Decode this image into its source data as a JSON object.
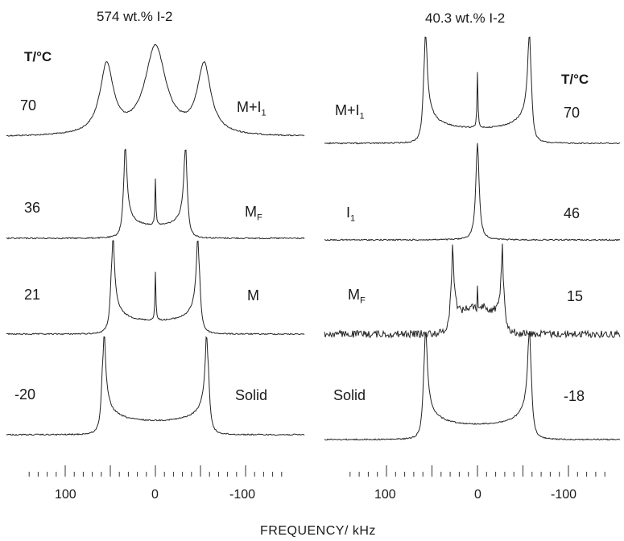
{
  "chart_data": {
    "type": "line",
    "xlabel": "FREQUENCY/ kHz",
    "x_tick_labels": [
      "100",
      "0",
      "-100"
    ],
    "xlim": [
      140,
      -140
    ],
    "panels": [
      {
        "title": "574 wt.% I-2",
        "temp_header": "T/°C",
        "spectra": [
          {
            "temperature": "70",
            "phase": "M+I1",
            "shape": "three_peak",
            "horns_kHz": [
              54,
              -54
            ],
            "center_peak": true
          },
          {
            "temperature": "36",
            "phase": "MF",
            "shape": "powder",
            "horns_kHz": [
              34,
              -34
            ],
            "center_spike": true
          },
          {
            "temperature": "21",
            "phase": "M",
            "shape": "powder",
            "horns_kHz": [
              48,
              -48
            ],
            "center_spike": true
          },
          {
            "temperature": "-20",
            "phase": "Solid",
            "shape": "powder",
            "horns_kHz": [
              58,
              -58
            ],
            "center_spike": false
          }
        ]
      },
      {
        "title": "40.3 wt.% I-2",
        "temp_header": "T/°C",
        "spectra": [
          {
            "temperature": "70",
            "phase": "M+I1",
            "shape": "powder",
            "horns_kHz": [
              58,
              -58
            ],
            "center_spike": true
          },
          {
            "temperature": "46",
            "phase": "I1",
            "shape": "single",
            "horns_kHz": [
              0
            ],
            "center_spike": false
          },
          {
            "temperature": "15",
            "phase": "MF",
            "shape": "noisy_powder",
            "horns_kHz": [
              28,
              -28
            ],
            "center_spike": true
          },
          {
            "temperature": "-18",
            "phase": "Solid",
            "shape": "powder",
            "horns_kHz": [
              58,
              -58
            ],
            "center_spike": false
          }
        ]
      }
    ]
  }
}
